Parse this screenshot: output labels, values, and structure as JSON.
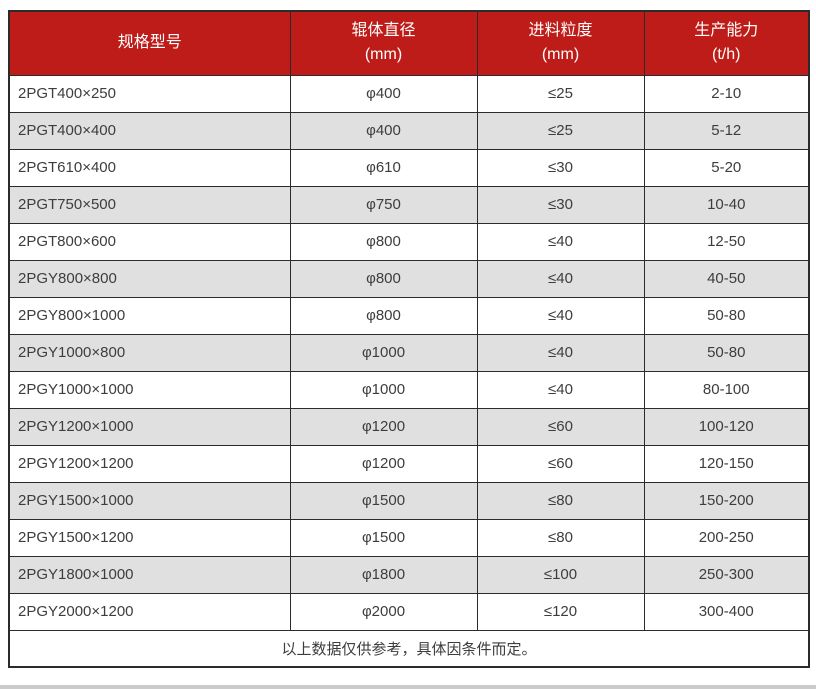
{
  "table": {
    "columns": [
      {
        "title": "规格型号",
        "unit": ""
      },
      {
        "title": "辊体直径",
        "unit": "(mm)"
      },
      {
        "title": "进料粒度",
        "unit": "(mm)"
      },
      {
        "title": "生产能力",
        "unit": "(t/h)"
      }
    ],
    "rows": [
      [
        "2PGT400×250",
        "φ400",
        "≤25",
        "2-10"
      ],
      [
        "2PGT400×400",
        "φ400",
        "≤25",
        "5-12"
      ],
      [
        "2PGT610×400",
        "φ610",
        "≤30",
        "5-20"
      ],
      [
        "2PGT750×500",
        "φ750",
        "≤30",
        "10-40"
      ],
      [
        "2PGT800×600",
        "φ800",
        "≤40",
        "12-50"
      ],
      [
        "2PGY800×800",
        "φ800",
        "≤40",
        "40-50"
      ],
      [
        "2PGY800×1000",
        "φ800",
        "≤40",
        "50-80"
      ],
      [
        "2PGY1000×800",
        "φ1000",
        "≤40",
        "50-80"
      ],
      [
        "2PGY1000×1000",
        "φ1000",
        "≤40",
        "80-100"
      ],
      [
        "2PGY1200×1000",
        "φ1200",
        "≤60",
        "100-120"
      ],
      [
        "2PGY1200×1200",
        "φ1200",
        "≤60",
        "120-150"
      ],
      [
        "2PGY1500×1000",
        "φ1500",
        "≤80",
        "150-200"
      ],
      [
        "2PGY1500×1200",
        "φ1500",
        "≤80",
        "200-250"
      ],
      [
        "2PGY1800×1000",
        "φ1800",
        "≤100",
        "250-300"
      ],
      [
        "2PGY2000×1200",
        "φ2000",
        "≤120",
        "300-400"
      ]
    ],
    "footer_note": "以上数据仅供参考，具体因条件而定。",
    "colors": {
      "header_bg": "#BE1C18",
      "header_text": "#FFFFFF",
      "row_bg": "#FFFFFF",
      "row_alt_bg": "#E0E0E0",
      "border": "#2B2B2B",
      "cell_text": "#3D3D3D"
    }
  }
}
